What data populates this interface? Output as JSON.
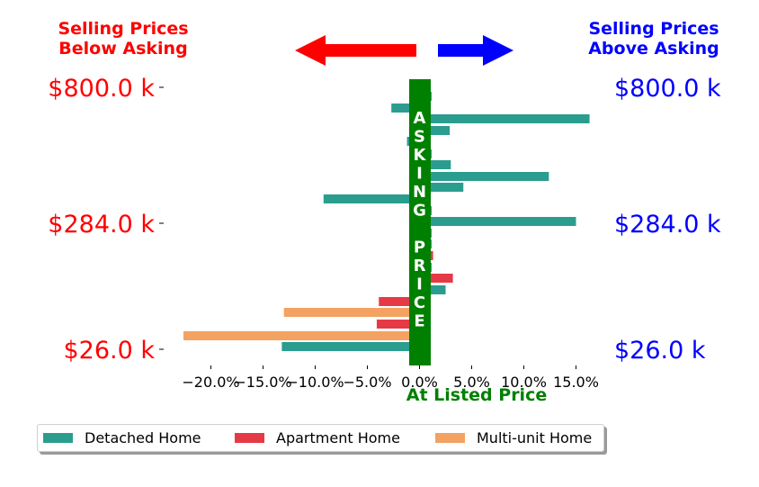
{
  "header": {
    "left_title": [
      "Selling Prices",
      "Below Asking"
    ],
    "right_title": [
      "Selling Prices",
      "Above Asking"
    ],
    "left_color": "#ff0000",
    "right_color": "#0000ff"
  },
  "center_band": {
    "letters": [
      "A",
      "S",
      "K",
      "I",
      "N",
      "G",
      "",
      "P",
      "R",
      "I",
      "C",
      "E"
    ],
    "color": "#008000"
  },
  "chart_data": {
    "type": "bar",
    "orientation": "horizontal",
    "xlabel": "At Listed Price",
    "xlim": [
      -23,
      17
    ],
    "xticks": [
      "−20.0%",
      "−15.0%",
      "−10.0%",
      "−5.0%",
      "0.0%",
      "5.0%",
      "10.0%",
      "15.0%"
    ],
    "xtick_values": [
      -20,
      -15,
      -10,
      -5,
      0,
      5,
      10,
      15
    ],
    "yticks_left": [
      "$800.0 k",
      "$284.0 k",
      "$26.0 k"
    ],
    "yticks_right": [
      "$800.0 k",
      "$284.0 k",
      "$26.0 k"
    ],
    "legend_position": "bottom",
    "series": [
      {
        "name": "Detached Home",
        "color": "#2a9d8f",
        "values": [
          -2.7,
          16.3,
          2.9,
          -1.2,
          3.0,
          12.4,
          4.2,
          -9.2,
          15.0,
          2.5,
          -13.2
        ]
      },
      {
        "name": "Apartment Home",
        "color": "#e63946",
        "values": [
          1.3,
          3.2,
          -3.9,
          -4.1
        ]
      },
      {
        "name": "Multi-unit Home",
        "color": "#f4a261",
        "values": [
          -13.0,
          -22.9
        ]
      }
    ]
  }
}
